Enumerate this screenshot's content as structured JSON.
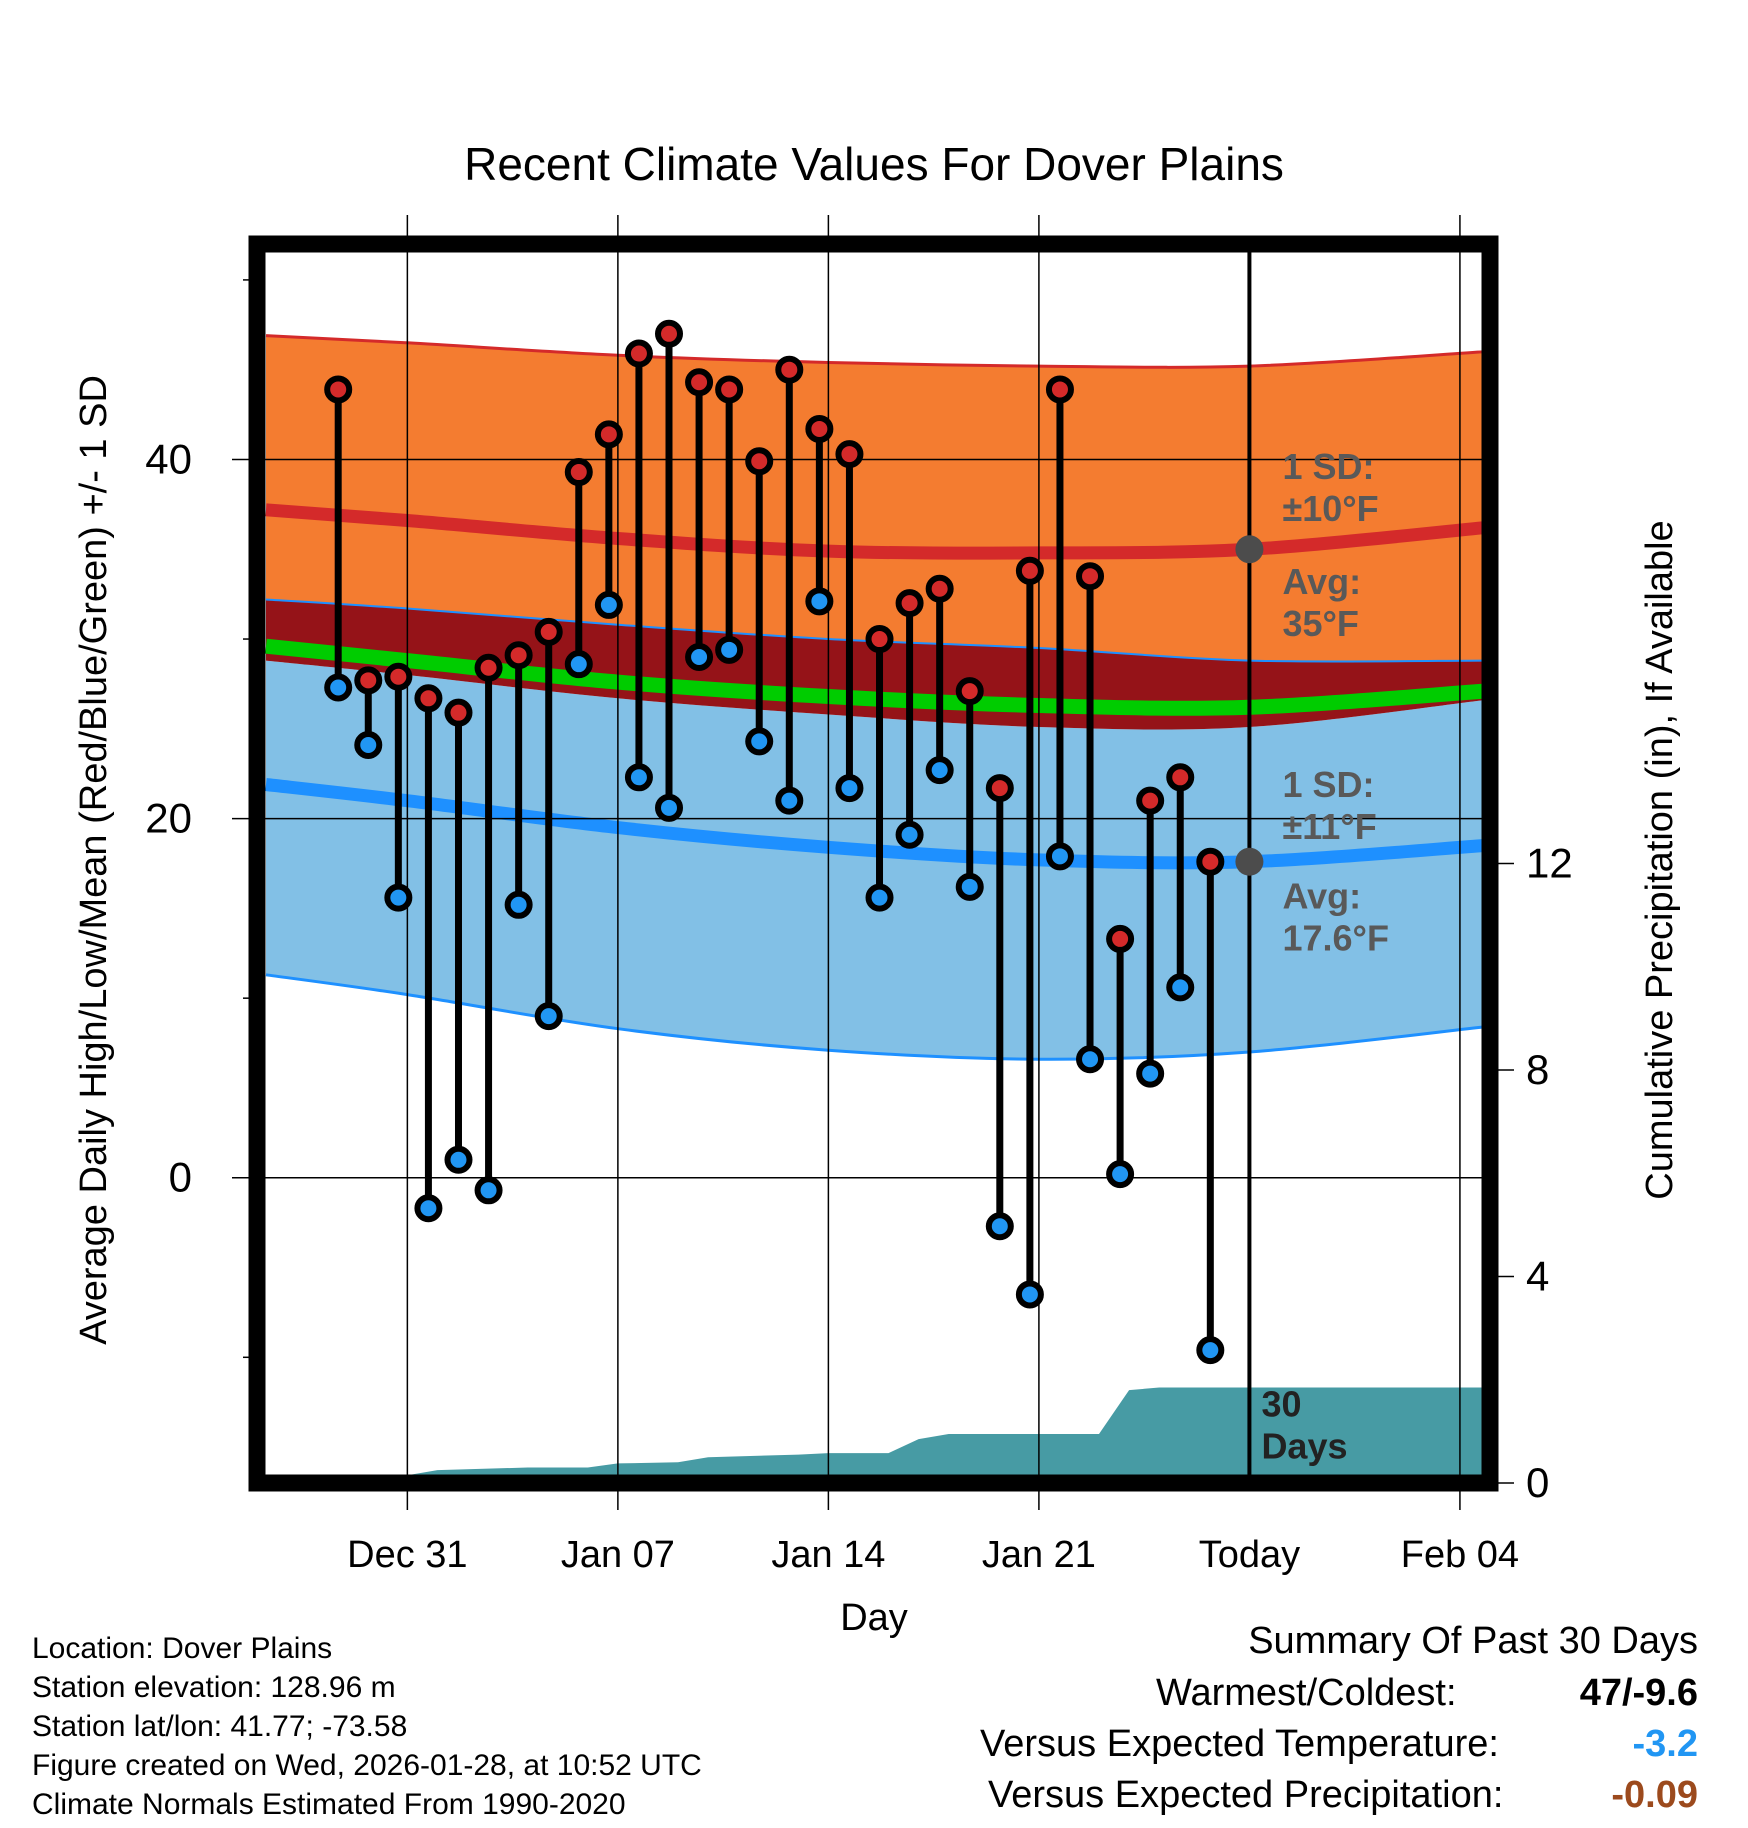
{
  "chart_data": {
    "type": "line",
    "title": "Recent Climate Values For Dover Plains",
    "xlabel": "Day",
    "ylabel": "Average Daily High/Low/Mean (Red/Blue/Green) +/- 1 SD",
    "y2label": "Cumulative Precipitation (in), If Available",
    "xlim": [
      -3,
      38
    ],
    "ylim": [
      -17,
      52
    ],
    "y2lim": [
      0,
      24
    ],
    "x_ticks": [
      {
        "x": 2,
        "label": "Dec 31"
      },
      {
        "x": 9,
        "label": "Jan 07"
      },
      {
        "x": 16,
        "label": "Jan 14"
      },
      {
        "x": 23,
        "label": "Jan 21"
      },
      {
        "x": 30,
        "label": "Today"
      },
      {
        "x": 37,
        "label": "Feb 04"
      }
    ],
    "y_ticks": [
      0,
      20,
      40
    ],
    "y_minor_ticks": [
      -10,
      10,
      30,
      50
    ],
    "y2_ticks": [
      0,
      4,
      8,
      12
    ],
    "today_x": 30,
    "days": [
      -0.3,
      0.7,
      1.7,
      2.7,
      3.7,
      4.7,
      5.7,
      6.7,
      7.7,
      8.7,
      9.7,
      10.7,
      11.7,
      12.7,
      13.7,
      14.7,
      15.7,
      16.7,
      17.7,
      18.7,
      19.7,
      20.7,
      21.7,
      22.7,
      23.7,
      24.7,
      25.7,
      26.7,
      27.7,
      28.7
    ],
    "series": [
      {
        "name": "Daily High",
        "color": "#d42a2a",
        "values": [
          43.9,
          27.7,
          27.9,
          26.7,
          25.9,
          28.4,
          29.1,
          30.4,
          39.3,
          41.4,
          45.9,
          47.0,
          44.3,
          43.9,
          39.9,
          45.0,
          41.7,
          40.3,
          30.0,
          32.0,
          32.8,
          27.1,
          21.7,
          33.8,
          43.9,
          33.5,
          13.3,
          21.0,
          22.3,
          17.6
        ]
      },
      {
        "name": "Daily Low",
        "color": "#2196f3",
        "values": [
          27.3,
          24.1,
          15.6,
          -1.7,
          1.0,
          -0.7,
          15.2,
          9.0,
          28.6,
          31.9,
          22.3,
          20.6,
          29.0,
          29.4,
          24.3,
          21.0,
          32.1,
          21.7,
          15.6,
          19.1,
          22.7,
          16.2,
          -2.7,
          -6.5,
          17.9,
          6.6,
          0.2,
          5.8,
          10.6,
          -9.6
        ]
      }
    ],
    "normals": {
      "x": [
        -2.7,
        2,
        9,
        16,
        23,
        30,
        37.8
      ],
      "high_avg": [
        37.2,
        36.6,
        35.6,
        34.9,
        34.8,
        35.0,
        36.2
      ],
      "high_upper": [
        46.9,
        46.5,
        45.8,
        45.4,
        45.2,
        45.2,
        46.0
      ],
      "high_lower": [
        32.2,
        31.7,
        30.8,
        30.0,
        29.5,
        28.8,
        28.8
      ],
      "mean_avg": [
        29.6,
        28.8,
        27.6,
        26.8,
        26.3,
        26.2,
        27.1
      ],
      "low_upper": [
        28.8,
        28.0,
        26.7,
        25.8,
        25.1,
        25.1,
        26.6
      ],
      "low_avg": [
        21.9,
        21.0,
        19.5,
        18.4,
        17.7,
        17.6,
        18.5
      ],
      "low_lower": [
        11.3,
        10.2,
        8.3,
        7.1,
        6.6,
        7.0,
        8.4
      ]
    },
    "precipitation": {
      "x": [
        -2.7,
        -2.2,
        2,
        3,
        6,
        8,
        9,
        11,
        12,
        15,
        16,
        18,
        19,
        20,
        24,
        25,
        26,
        27,
        28,
        37.8
      ],
      "values": [
        0.0,
        0.15,
        0.15,
        0.25,
        0.3,
        0.3,
        0.38,
        0.4,
        0.5,
        0.55,
        0.58,
        0.58,
        0.85,
        0.95,
        0.95,
        0.95,
        1.8,
        1.85,
        1.85,
        1.85
      ]
    },
    "annotations": [
      {
        "x": 31.1,
        "y": 38.9,
        "lines": [
          "1 SD:",
          "±10°F"
        ]
      },
      {
        "x": 31.1,
        "y": 32.5,
        "lines": [
          "Avg:",
          "35°F"
        ]
      },
      {
        "x": 31.1,
        "y": 21.2,
        "lines": [
          "1 SD:",
          "±11°F"
        ]
      },
      {
        "x": 31.1,
        "y": 15.0,
        "lines": [
          "Avg:",
          "17.6°F"
        ]
      },
      {
        "x": 30.4,
        "y": -13.3,
        "lines": [
          "30",
          "Days"
        ]
      }
    ],
    "colors": {
      "high_band": "#f47c30",
      "high_line": "#d42a2a",
      "high_lower_band": "#951318",
      "mean_band": "#00cc00",
      "low_band": "#82c0e6",
      "low_line": "#1e90ff",
      "low_edge": "#1e90ff",
      "precip": "#479ba4",
      "annotation": "#595959",
      "avg_marker": "#4c4c4c"
    }
  },
  "location_info": [
    "Location: Dover Plains",
    "Station elevation: 128.96 m",
    "Station lat/lon: 41.77; -73.58",
    "Figure created on Wed, 2026-01-28, at 10:52 UTC",
    "Climate Normals Estimated From 1990-2020"
  ],
  "summary": {
    "title": "Summary Of Past 30 Days",
    "warmest_coldest_label": "Warmest/Coldest:",
    "warmest_coldest_value": "47/-9.6",
    "temp_label": "Versus Expected Temperature:",
    "temp_value": "-3.2",
    "precip_label": "Versus Expected Precipitation:",
    "precip_value": "-0.09",
    "temp_color": "#2196f3",
    "precip_color": "#9c4a1d"
  }
}
